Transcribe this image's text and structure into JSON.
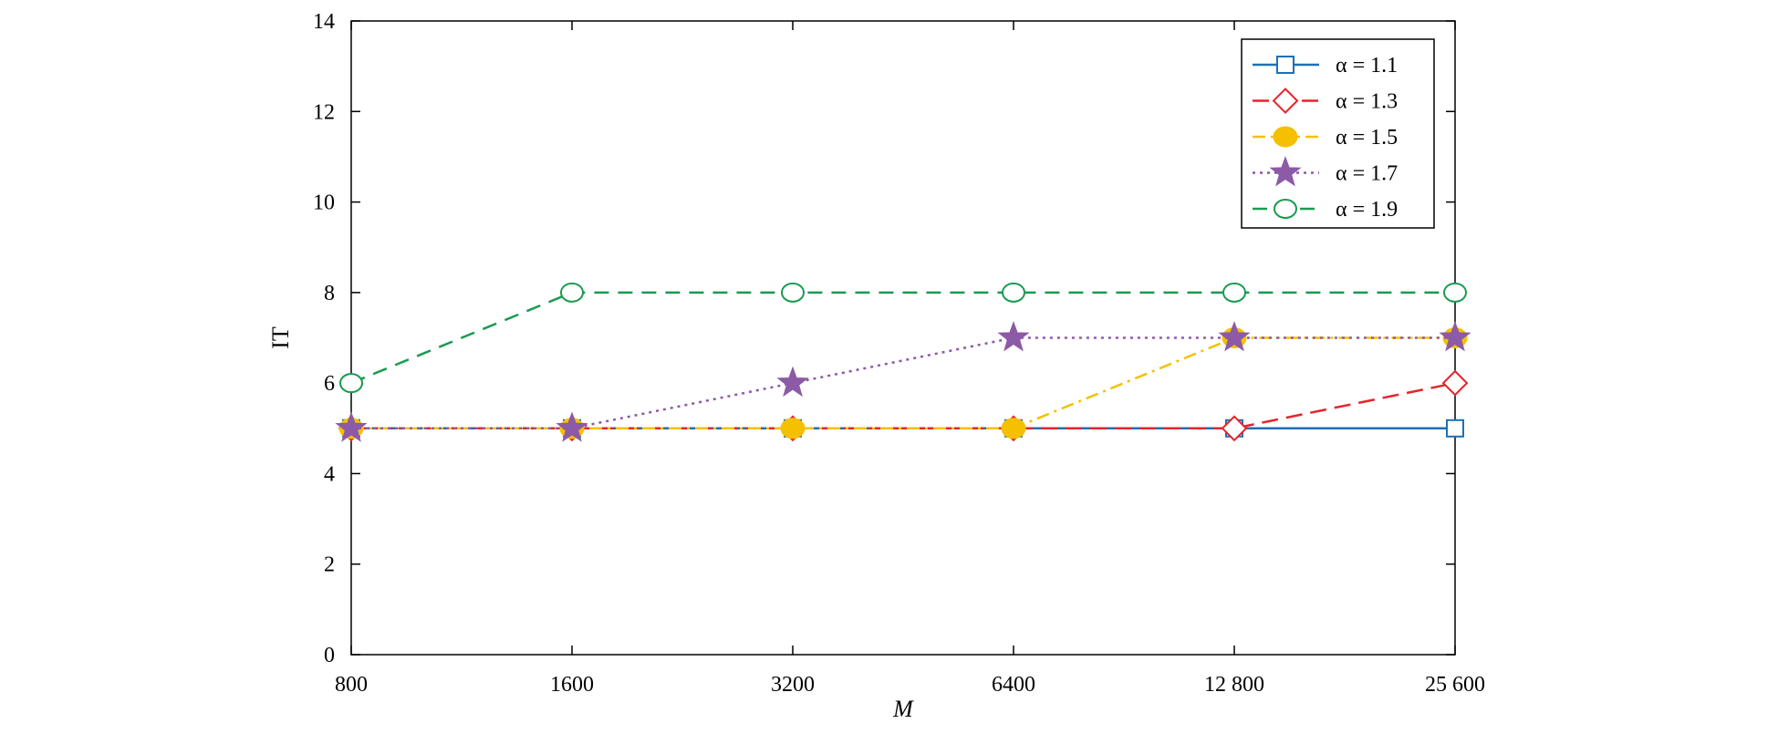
{
  "chart_data": {
    "type": "line",
    "title": "",
    "xlabel": "M",
    "ylabel": "IT",
    "categories": [
      "800",
      "1600",
      "3200",
      "6400",
      "12 800",
      "25 600"
    ],
    "x": [
      800,
      1600,
      3200,
      6400,
      12800,
      25600
    ],
    "x_scale": "log2",
    "ylim": [
      0,
      14
    ],
    "yticks": [
      "0",
      "2",
      "4",
      "6",
      "8",
      "10",
      "12",
      "14"
    ],
    "grid": false,
    "legend_position": "top-right",
    "series": [
      {
        "name": "α = 1.1",
        "values": [
          5,
          5,
          5,
          5,
          5,
          5
        ],
        "color": "#1f6fb5",
        "marker": "square",
        "dash": "solid"
      },
      {
        "name": "α = 1.3",
        "values": [
          5,
          5,
          5,
          5,
          5,
          6
        ],
        "color": "#e8232b",
        "marker": "diamond",
        "dash": "dashed"
      },
      {
        "name": "α = 1.5",
        "values": [
          5,
          5,
          5,
          5,
          7,
          7
        ],
        "color": "#f5c000",
        "marker": "filled-circle",
        "dash": "dashdot"
      },
      {
        "name": "α = 1.7",
        "values": [
          5,
          5,
          6,
          7,
          7,
          7
        ],
        "color": "#8c5aa6",
        "marker": "star",
        "dash": "dotted"
      },
      {
        "name": "α = 1.9",
        "values": [
          6,
          8,
          8,
          8,
          8,
          8
        ],
        "color": "#1a9a50",
        "marker": "open-circle",
        "dash": "longdash"
      }
    ]
  }
}
